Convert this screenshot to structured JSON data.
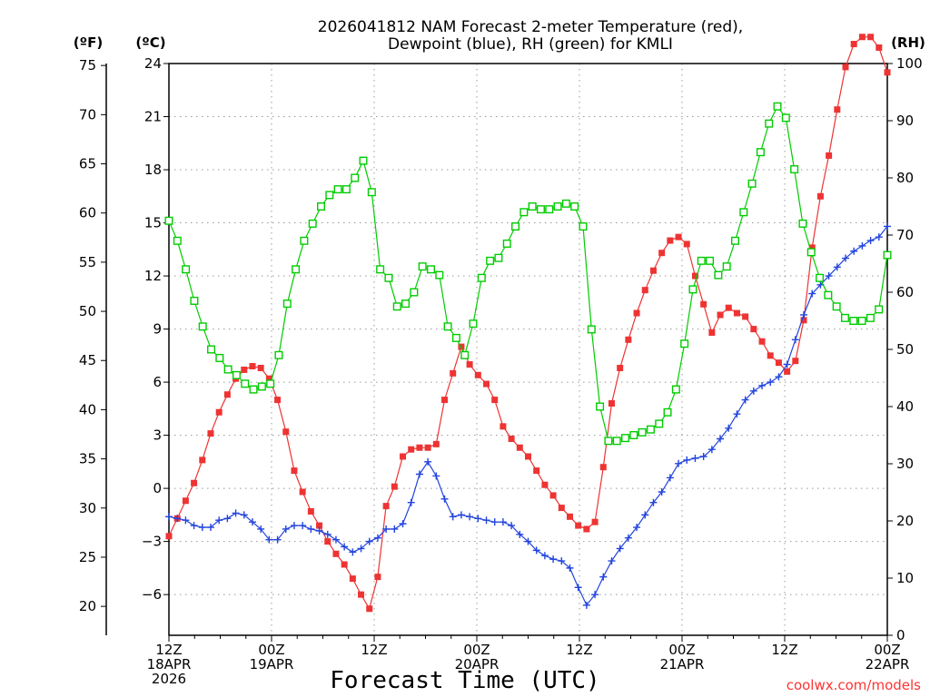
{
  "chart_data": {
    "type": "line",
    "title_line1": "2026041812 NAM Forecast 2-meter Temperature (red),",
    "title_line2": "Dewpoint (blue), RH (green) for KMLI",
    "left_unit_f": "(ºF)",
    "left_unit_c": "(ºC)",
    "right_unit": "(RH)",
    "xlabel": "Forecast Time (UTC)",
    "credit": "coolwx.com/models",
    "x_hours_range": [
      0,
      84
    ],
    "c_range": [
      -8.3,
      24.0
    ],
    "rh_range": [
      0,
      100
    ],
    "f_ticks": [
      "75",
      "70",
      "65",
      "60",
      "55",
      "50",
      "45",
      "40",
      "35",
      "30",
      "25",
      "20"
    ],
    "c_ticks": [
      "24",
      "21",
      "18",
      "15",
      "12",
      "9",
      "6",
      "3",
      "0",
      "−3",
      "−6"
    ],
    "rh_ticks": [
      "100",
      "90",
      "80",
      "70",
      "60",
      "50",
      "40",
      "30",
      "20",
      "10",
      "0"
    ],
    "x_ticks": [
      {
        "hour": 0,
        "lines": [
          "12Z",
          "18APR",
          "2026"
        ]
      },
      {
        "hour": 12,
        "lines": [
          "00Z",
          "19APR"
        ]
      },
      {
        "hour": 24,
        "lines": [
          "12Z"
        ]
      },
      {
        "hour": 36,
        "lines": [
          "00Z",
          "20APR"
        ]
      },
      {
        "hour": 48,
        "lines": [
          "12Z"
        ]
      },
      {
        "hour": 60,
        "lines": [
          "00Z",
          "21APR"
        ]
      },
      {
        "hour": 72,
        "lines": [
          "12Z"
        ]
      },
      {
        "hour": 84,
        "lines": [
          "00Z",
          "22APR"
        ]
      }
    ],
    "series": [
      {
        "name": "Temperature",
        "color": "#ee3333",
        "marker": "filled-square",
        "units": "°C",
        "values": [
          -2.7,
          -1.7,
          -0.7,
          0.3,
          1.6,
          3.1,
          4.3,
          5.3,
          6.2,
          6.7,
          6.9,
          6.8,
          6.2,
          5.0,
          3.2,
          1.0,
          -0.2,
          -1.3,
          -2.1,
          -3.0,
          -3.7,
          -4.3,
          -5.1,
          -6.0,
          -6.8,
          -5.0,
          -1.0,
          0.1,
          1.8,
          2.2,
          2.3,
          2.3,
          2.5,
          5.0,
          6.5,
          8.0,
          7.0,
          6.4,
          5.9,
          5.0,
          3.5,
          2.8,
          2.3,
          1.8,
          1.0,
          0.2,
          -0.4,
          -1.1,
          -1.6,
          -2.1,
          -2.3,
          -1.9,
          1.2,
          4.8,
          6.8,
          8.4,
          9.9,
          11.2,
          12.3,
          13.3,
          14.0,
          14.2,
          13.8,
          12.0,
          10.4,
          8.8,
          9.8,
          10.2,
          9.9,
          9.7,
          9.0,
          8.3,
          7.5,
          7.1,
          6.6,
          7.2,
          9.5,
          13.6,
          16.5,
          18.8,
          21.4,
          23.8,
          25.1,
          25.5,
          25.5,
          24.9,
          23.5
        ]
      },
      {
        "name": "Dewpoint",
        "color": "#2244dd",
        "marker": "plus",
        "units": "°C",
        "values": [
          -1.6,
          -1.7,
          -1.8,
          -2.1,
          -2.2,
          -2.2,
          -1.8,
          -1.7,
          -1.4,
          -1.5,
          -1.9,
          -2.3,
          -2.9,
          -2.9,
          -2.3,
          -2.1,
          -2.1,
          -2.3,
          -2.4,
          -2.6,
          -2.9,
          -3.3,
          -3.6,
          -3.4,
          -3.0,
          -2.8,
          -2.3,
          -2.3,
          -2.0,
          -0.8,
          0.8,
          1.5,
          0.7,
          -0.6,
          -1.6,
          -1.5,
          -1.6,
          -1.7,
          -1.8,
          -1.9,
          -1.9,
          -2.1,
          -2.6,
          -3.0,
          -3.5,
          -3.8,
          -4.0,
          -4.1,
          -4.5,
          -5.6,
          -6.6,
          -6.0,
          -5.0,
          -4.1,
          -3.4,
          -2.8,
          -2.2,
          -1.5,
          -0.8,
          -0.2,
          0.6,
          1.4,
          1.6,
          1.7,
          1.8,
          2.2,
          2.8,
          3.4,
          4.2,
          5.0,
          5.5,
          5.8,
          6.0,
          6.3,
          7.0,
          8.4,
          9.8,
          11.0,
          11.5,
          12.0,
          12.5,
          13.0,
          13.4,
          13.7,
          14.0,
          14.2,
          14.8
        ]
      },
      {
        "name": "RH",
        "color": "#00cc00",
        "marker": "open-square",
        "units": "%",
        "values": [
          72.5,
          69.0,
          64.0,
          58.5,
          54.0,
          50.0,
          48.5,
          46.5,
          45.5,
          44.0,
          43.0,
          43.5,
          44.0,
          49.0,
          58.0,
          64.0,
          69.0,
          72.0,
          75.0,
          77.0,
          78.0,
          78.0,
          80.0,
          83.0,
          77.5,
          64.0,
          62.5,
          57.5,
          58.0,
          60.0,
          64.5,
          64.0,
          63.0,
          54.0,
          52.0,
          49.0,
          54.5,
          62.5,
          65.5,
          66.0,
          68.5,
          71.5,
          74.0,
          75.0,
          74.5,
          74.5,
          75.0,
          75.5,
          75.0,
          71.5,
          53.5,
          40.0,
          34.0,
          34.0,
          34.5,
          35.0,
          35.5,
          36.0,
          37.0,
          39.0,
          43.0,
          51.0,
          60.5,
          65.5,
          65.5,
          63.0,
          64.5,
          69.0,
          74.0,
          79.0,
          84.5,
          89.5,
          92.5,
          90.5,
          81.5,
          72.0,
          67.0,
          62.5,
          59.5,
          57.5,
          55.5,
          55.0,
          55.0,
          55.5,
          57.0,
          66.5
        ]
      }
    ]
  }
}
